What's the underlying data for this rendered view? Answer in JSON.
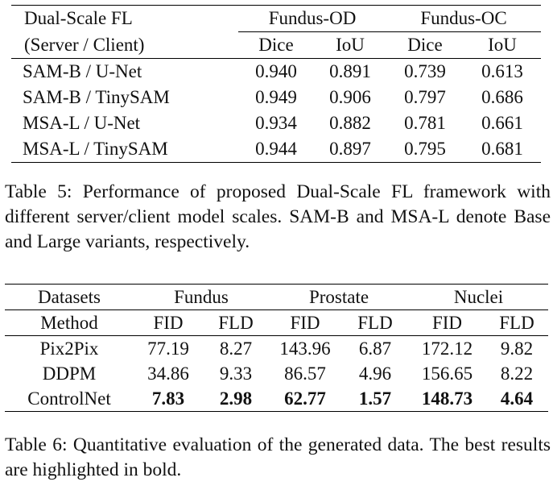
{
  "table5": {
    "header_col1_line1": "Dual-Scale FL",
    "header_col1_line2": "(Server / Client)",
    "group1": "Fundus-OD",
    "group2": "Fundus-OC",
    "metrics": [
      "Dice",
      "IoU",
      "Dice",
      "IoU"
    ],
    "rows": [
      {
        "model": "SAM-B / U-Net",
        "values": [
          "0.940",
          "0.891",
          "0.739",
          "0.613"
        ]
      },
      {
        "model": "SAM-B / TinySAM",
        "values": [
          "0.949",
          "0.906",
          "0.797",
          "0.686"
        ]
      },
      {
        "model": "MSA-L / U-Net",
        "values": [
          "0.934",
          "0.882",
          "0.781",
          "0.661"
        ]
      },
      {
        "model": "MSA-L / TinySAM",
        "values": [
          "0.944",
          "0.897",
          "0.795",
          "0.681"
        ]
      }
    ],
    "caption": "Table 5: Performance of proposed Dual-Scale FL framework with different server/client model scales. SAM-B and MSA-L denote Base and Large variants, respectively."
  },
  "table6": {
    "header_datasets": "Datasets",
    "header_method": "Method",
    "groups": [
      "Fundus",
      "Prostate",
      "Nuclei"
    ],
    "metrics": [
      "FID",
      "FLD",
      "FID",
      "FLD",
      "FID",
      "FLD"
    ],
    "rows": [
      {
        "method": "Pix2Pix",
        "values": [
          "77.19",
          "8.27",
          "143.96",
          "6.87",
          "172.12",
          "9.82"
        ]
      },
      {
        "method": "DDPM",
        "values": [
          "34.86",
          "9.33",
          "86.57",
          "4.96",
          "156.65",
          "8.22"
        ]
      },
      {
        "method": "ControlNet",
        "values": [
          "7.83",
          "2.98",
          "62.77",
          "1.57",
          "148.73",
          "4.64"
        ]
      }
    ],
    "caption": "Table 6: Quantitative evaluation of the generated data. The best results are highlighted in bold."
  }
}
